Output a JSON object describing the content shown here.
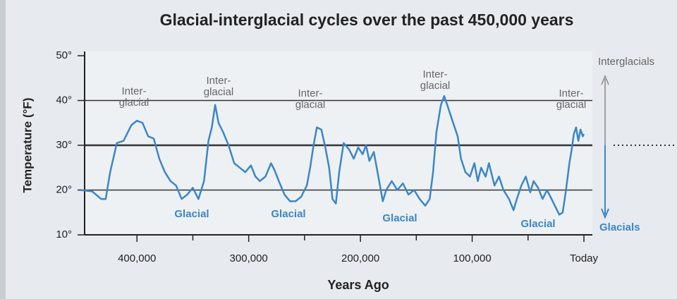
{
  "chart_data": {
    "type": "line",
    "title": "Glacial-interglacial cycles over the past 450,000 years",
    "xlabel": "Years Ago",
    "ylabel": "Temperature (°F)",
    "xlim": [
      450000,
      0
    ],
    "ylim": [
      10,
      50
    ],
    "xticks": [
      {
        "value": 400000,
        "label": "400,000"
      },
      {
        "value": 300000,
        "label": "300,000"
      },
      {
        "value": 200000,
        "label": "200,000"
      },
      {
        "value": 100000,
        "label": "100,000"
      },
      {
        "value": 0,
        "label": "Today"
      }
    ],
    "xminorticks": [
      350000,
      250000,
      150000,
      50000
    ],
    "yticks": [
      {
        "value": 10,
        "label": "10°"
      },
      {
        "value": 20,
        "label": "20°"
      },
      {
        "value": 30,
        "label": "30°"
      },
      {
        "value": 40,
        "label": "40°"
      },
      {
        "value": 50,
        "label": "50°"
      }
    ],
    "grid": true,
    "threshold": 30,
    "x": [
      450000,
      440000,
      432000,
      428000,
      424000,
      418000,
      412000,
      405000,
      400000,
      395000,
      390000,
      385000,
      380000,
      375000,
      370000,
      365000,
      360000,
      355000,
      350000,
      345000,
      340000,
      336000,
      333000,
      330000,
      327000,
      323000,
      318000,
      313000,
      308000,
      303000,
      298000,
      294000,
      290000,
      285000,
      280000,
      277000,
      273000,
      268000,
      263000,
      258000,
      253000,
      248000,
      245000,
      242000,
      239000,
      235000,
      231000,
      228000,
      225000,
      222000,
      219000,
      215000,
      210000,
      206000,
      202000,
      198000,
      195000,
      192000,
      188000,
      184000,
      180000,
      177000,
      172000,
      167000,
      162000,
      157000,
      152000,
      147000,
      142000,
      138000,
      135000,
      132000,
      128000,
      125000,
      121000,
      117000,
      113000,
      110000,
      106000,
      102000,
      98000,
      95000,
      92000,
      88000,
      85000,
      80000,
      76000,
      72000,
      67000,
      63000,
      60000,
      56000,
      52000,
      48000,
      45000,
      41000,
      37000,
      33000,
      29000,
      26000,
      22000,
      19000,
      16000,
      13000,
      11000,
      9000,
      7000,
      5000,
      3000,
      1000,
      0
    ],
    "series": [
      {
        "color": "#3b86c8",
        "values": [
          20,
          19.7,
          18,
          18,
          24,
          30.5,
          31,
          34.5,
          35.5,
          35,
          32,
          31.5,
          27,
          24,
          22,
          21,
          18,
          19,
          20.5,
          18,
          22,
          31,
          34,
          39,
          35,
          33,
          30,
          26,
          25,
          24,
          25.5,
          23,
          22,
          23,
          26,
          24.5,
          22,
          19,
          17.5,
          17.5,
          18.5,
          21,
          25,
          30,
          34,
          33.5,
          29,
          25,
          18,
          17,
          24,
          30.5,
          29,
          27,
          29.5,
          28,
          30,
          26.5,
          28.5,
          23,
          17.5,
          20,
          22,
          20,
          21.5,
          19,
          20,
          18,
          16.5,
          18,
          24,
          33,
          39,
          41,
          38,
          35,
          32,
          27,
          24,
          23,
          26,
          22,
          25,
          23,
          26,
          21,
          23,
          20,
          18,
          15.5,
          18,
          21,
          23,
          19.5,
          22,
          20.5,
          18,
          20,
          18,
          16.5,
          14.5,
          15,
          20,
          26,
          29,
          32.5,
          34,
          31,
          33.5,
          32,
          32.5
        ]
      }
    ],
    "interglacial_labels": [
      [
        "Inter-",
        "glacial"
      ],
      [
        "Inter-",
        "glacial"
      ],
      [
        "Inter-",
        "glacial"
      ],
      [
        "Inter-",
        "glacial"
      ],
      [
        "Inter-",
        "glacial"
      ]
    ],
    "glacial_labels": [
      "Glacial",
      "Glacial",
      "Glacial",
      "Glacial"
    ],
    "range_labels": [
      "Interglacials",
      "Glacials"
    ]
  }
}
